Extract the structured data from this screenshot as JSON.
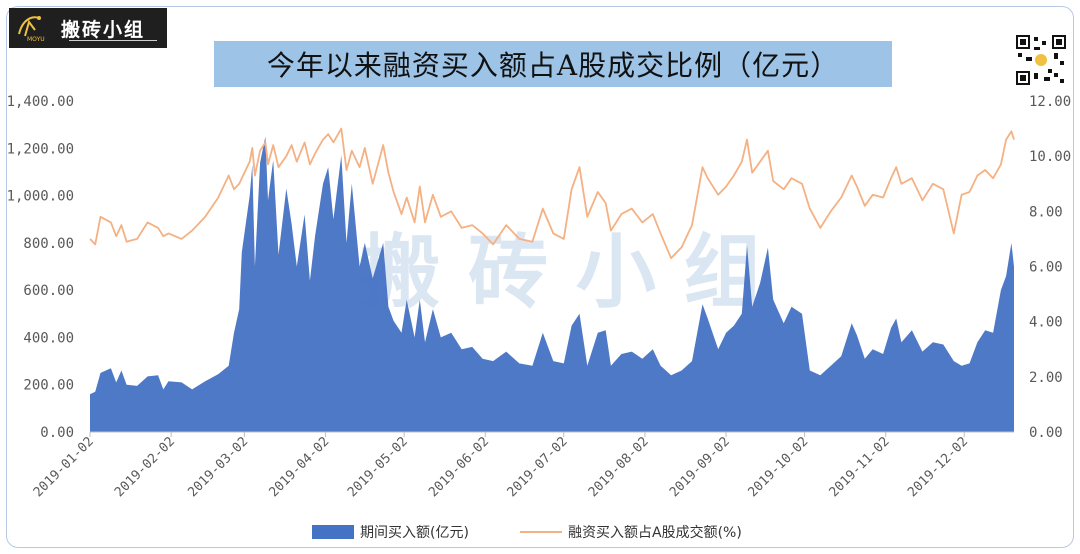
{
  "brand": {
    "name": "搬砖小组",
    "sub": "MOYU"
  },
  "watermark": "搬 砖 小 组",
  "chart_data": {
    "type": "area+line",
    "title": "今年以来融资买入额占A股成交比例（亿元）",
    "colors": {
      "area": "#4472c4",
      "line": "#f4b183",
      "title_bg": "#9dc3e6"
    },
    "x_labels": [
      "2019-01-02",
      "2019-02-02",
      "2019-03-02",
      "2019-04-02",
      "2019-05-02",
      "2019-06-02",
      "2019-07-02",
      "2019-08-02",
      "2019-09-02",
      "2019-10-02",
      "2019-11-02",
      "2019-12-02"
    ],
    "y_left": {
      "min": 0,
      "max": 1400,
      "ticks": [
        "0.00",
        "200.00",
        "400.00",
        "600.00",
        "800.00",
        "1,000.00",
        "1,200.00",
        "1,400.00"
      ]
    },
    "y_right": {
      "min": 0,
      "max": 12,
      "ticks": [
        "0.00",
        "2.00",
        "4.00",
        "6.00",
        "8.00",
        "10.00",
        "12.00"
      ]
    },
    "series": [
      {
        "name": "期间买入额(亿元)",
        "axis": "left",
        "points": [
          [
            "2019-01-02",
            160
          ],
          [
            "2019-01-04",
            170
          ],
          [
            "2019-01-06",
            250
          ],
          [
            "2019-01-10",
            270
          ],
          [
            "2019-01-12",
            210
          ],
          [
            "2019-01-14",
            260
          ],
          [
            "2019-01-16",
            200
          ],
          [
            "2019-01-20",
            195
          ],
          [
            "2019-01-24",
            235
          ],
          [
            "2019-01-28",
            240
          ],
          [
            "2019-01-30",
            180
          ],
          [
            "2019-02-01",
            215
          ],
          [
            "2019-02-06",
            210
          ],
          [
            "2019-02-10",
            180
          ],
          [
            "2019-02-15",
            215
          ],
          [
            "2019-02-20",
            245
          ],
          [
            "2019-02-24",
            280
          ],
          [
            "2019-02-26",
            420
          ],
          [
            "2019-02-28",
            520
          ],
          [
            "2019-03-01",
            760
          ],
          [
            "2019-03-04",
            1000
          ],
          [
            "2019-03-05",
            1130
          ],
          [
            "2019-03-06",
            700
          ],
          [
            "2019-03-08",
            1140
          ],
          [
            "2019-03-10",
            1250
          ],
          [
            "2019-03-11",
            980
          ],
          [
            "2019-03-13",
            1150
          ],
          [
            "2019-03-15",
            750
          ],
          [
            "2019-03-18",
            1030
          ],
          [
            "2019-03-20",
            880
          ],
          [
            "2019-03-22",
            700
          ],
          [
            "2019-03-25",
            920
          ],
          [
            "2019-03-27",
            640
          ],
          [
            "2019-03-29",
            830
          ],
          [
            "2019-04-01",
            1050
          ],
          [
            "2019-04-03",
            1120
          ],
          [
            "2019-04-05",
            900
          ],
          [
            "2019-04-08",
            1170
          ],
          [
            "2019-04-10",
            800
          ],
          [
            "2019-04-12",
            1050
          ],
          [
            "2019-04-15",
            700
          ],
          [
            "2019-04-17",
            800
          ],
          [
            "2019-04-20",
            650
          ],
          [
            "2019-04-24",
            800
          ],
          [
            "2019-04-26",
            530
          ],
          [
            "2019-04-28",
            470
          ],
          [
            "2019-05-01",
            420
          ],
          [
            "2019-05-03",
            560
          ],
          [
            "2019-05-06",
            400
          ],
          [
            "2019-05-08",
            560
          ],
          [
            "2019-05-10",
            380
          ],
          [
            "2019-05-13",
            520
          ],
          [
            "2019-05-16",
            400
          ],
          [
            "2019-05-20",
            420
          ],
          [
            "2019-05-24",
            350
          ],
          [
            "2019-05-28",
            360
          ],
          [
            "2019-06-01",
            310
          ],
          [
            "2019-06-05",
            300
          ],
          [
            "2019-06-10",
            340
          ],
          [
            "2019-06-15",
            290
          ],
          [
            "2019-06-20",
            280
          ],
          [
            "2019-06-24",
            420
          ],
          [
            "2019-06-28",
            300
          ],
          [
            "2019-07-02",
            290
          ],
          [
            "2019-07-05",
            450
          ],
          [
            "2019-07-08",
            500
          ],
          [
            "2019-07-11",
            280
          ],
          [
            "2019-07-15",
            420
          ],
          [
            "2019-07-18",
            430
          ],
          [
            "2019-07-20",
            280
          ],
          [
            "2019-07-24",
            330
          ],
          [
            "2019-07-28",
            340
          ],
          [
            "2019-08-01",
            310
          ],
          [
            "2019-08-05",
            350
          ],
          [
            "2019-08-08",
            280
          ],
          [
            "2019-08-12",
            240
          ],
          [
            "2019-08-16",
            260
          ],
          [
            "2019-08-20",
            300
          ],
          [
            "2019-08-24",
            540
          ],
          [
            "2019-08-26",
            480
          ],
          [
            "2019-08-30",
            350
          ],
          [
            "2019-09-02",
            420
          ],
          [
            "2019-09-05",
            450
          ],
          [
            "2019-09-08",
            500
          ],
          [
            "2019-09-10",
            790
          ],
          [
            "2019-09-12",
            530
          ],
          [
            "2019-09-15",
            630
          ],
          [
            "2019-09-18",
            780
          ],
          [
            "2019-09-20",
            560
          ],
          [
            "2019-09-24",
            460
          ],
          [
            "2019-09-27",
            530
          ],
          [
            "2019-10-01",
            500
          ],
          [
            "2019-10-04",
            260
          ],
          [
            "2019-10-08",
            240
          ],
          [
            "2019-10-12",
            280
          ],
          [
            "2019-10-16",
            320
          ],
          [
            "2019-10-20",
            460
          ],
          [
            "2019-10-22",
            410
          ],
          [
            "2019-10-25",
            310
          ],
          [
            "2019-10-28",
            350
          ],
          [
            "2019-11-01",
            330
          ],
          [
            "2019-11-04",
            440
          ],
          [
            "2019-11-06",
            480
          ],
          [
            "2019-11-08",
            380
          ],
          [
            "2019-11-12",
            430
          ],
          [
            "2019-11-16",
            340
          ],
          [
            "2019-11-20",
            380
          ],
          [
            "2019-11-24",
            370
          ],
          [
            "2019-11-28",
            300
          ],
          [
            "2019-12-01",
            280
          ],
          [
            "2019-12-04",
            290
          ],
          [
            "2019-12-07",
            380
          ],
          [
            "2019-12-10",
            430
          ],
          [
            "2019-12-13",
            420
          ],
          [
            "2019-12-16",
            600
          ],
          [
            "2019-12-18",
            660
          ],
          [
            "2019-12-20",
            800
          ],
          [
            "2019-12-21",
            700
          ]
        ]
      },
      {
        "name": "融资买入额占A股成交额(%)",
        "axis": "right",
        "points": [
          [
            "2019-01-02",
            7.0
          ],
          [
            "2019-01-04",
            6.8
          ],
          [
            "2019-01-06",
            7.8
          ],
          [
            "2019-01-10",
            7.6
          ],
          [
            "2019-01-12",
            7.1
          ],
          [
            "2019-01-14",
            7.5
          ],
          [
            "2019-01-16",
            6.9
          ],
          [
            "2019-01-20",
            7.0
          ],
          [
            "2019-01-24",
            7.6
          ],
          [
            "2019-01-28",
            7.4
          ],
          [
            "2019-01-30",
            7.1
          ],
          [
            "2019-02-01",
            7.2
          ],
          [
            "2019-02-06",
            7.0
          ],
          [
            "2019-02-10",
            7.3
          ],
          [
            "2019-02-15",
            7.8
          ],
          [
            "2019-02-20",
            8.5
          ],
          [
            "2019-02-24",
            9.3
          ],
          [
            "2019-02-26",
            8.8
          ],
          [
            "2019-02-28",
            9.0
          ],
          [
            "2019-03-01",
            9.2
          ],
          [
            "2019-03-04",
            9.8
          ],
          [
            "2019-03-05",
            10.3
          ],
          [
            "2019-03-06",
            9.3
          ],
          [
            "2019-03-08",
            10.2
          ],
          [
            "2019-03-10",
            10.5
          ],
          [
            "2019-03-11",
            9.7
          ],
          [
            "2019-03-13",
            10.4
          ],
          [
            "2019-03-15",
            9.6
          ],
          [
            "2019-03-18",
            10.0
          ],
          [
            "2019-03-20",
            10.4
          ],
          [
            "2019-03-22",
            9.8
          ],
          [
            "2019-03-25",
            10.5
          ],
          [
            "2019-03-27",
            9.7
          ],
          [
            "2019-03-29",
            10.1
          ],
          [
            "2019-04-01",
            10.6
          ],
          [
            "2019-04-03",
            10.8
          ],
          [
            "2019-04-05",
            10.5
          ],
          [
            "2019-04-08",
            11.0
          ],
          [
            "2019-04-10",
            9.5
          ],
          [
            "2019-04-12",
            10.2
          ],
          [
            "2019-04-15",
            9.6
          ],
          [
            "2019-04-17",
            10.3
          ],
          [
            "2019-04-20",
            9.0
          ],
          [
            "2019-04-24",
            10.4
          ],
          [
            "2019-04-26",
            9.4
          ],
          [
            "2019-04-28",
            8.7
          ],
          [
            "2019-05-01",
            7.9
          ],
          [
            "2019-05-03",
            8.5
          ],
          [
            "2019-05-06",
            7.6
          ],
          [
            "2019-05-08",
            8.9
          ],
          [
            "2019-05-10",
            7.6
          ],
          [
            "2019-05-13",
            8.6
          ],
          [
            "2019-05-16",
            7.8
          ],
          [
            "2019-05-20",
            8.0
          ],
          [
            "2019-05-24",
            7.4
          ],
          [
            "2019-05-28",
            7.5
          ],
          [
            "2019-06-01",
            7.2
          ],
          [
            "2019-06-05",
            6.8
          ],
          [
            "2019-06-10",
            7.5
          ],
          [
            "2019-06-15",
            7.0
          ],
          [
            "2019-06-20",
            6.9
          ],
          [
            "2019-06-24",
            8.1
          ],
          [
            "2019-06-28",
            7.2
          ],
          [
            "2019-07-02",
            7.0
          ],
          [
            "2019-07-05",
            8.8
          ],
          [
            "2019-07-08",
            9.6
          ],
          [
            "2019-07-11",
            7.8
          ],
          [
            "2019-07-15",
            8.7
          ],
          [
            "2019-07-18",
            8.3
          ],
          [
            "2019-07-20",
            7.3
          ],
          [
            "2019-07-24",
            7.9
          ],
          [
            "2019-07-28",
            8.1
          ],
          [
            "2019-08-01",
            7.6
          ],
          [
            "2019-08-05",
            7.9
          ],
          [
            "2019-08-08",
            7.2
          ],
          [
            "2019-08-12",
            6.3
          ],
          [
            "2019-08-16",
            6.7
          ],
          [
            "2019-08-20",
            7.5
          ],
          [
            "2019-08-24",
            9.6
          ],
          [
            "2019-08-26",
            9.2
          ],
          [
            "2019-08-30",
            8.6
          ],
          [
            "2019-09-02",
            8.9
          ],
          [
            "2019-09-05",
            9.3
          ],
          [
            "2019-09-08",
            9.8
          ],
          [
            "2019-09-10",
            10.6
          ],
          [
            "2019-09-12",
            9.4
          ],
          [
            "2019-09-15",
            9.8
          ],
          [
            "2019-09-18",
            10.2
          ],
          [
            "2019-09-20",
            9.1
          ],
          [
            "2019-09-24",
            8.8
          ],
          [
            "2019-09-27",
            9.2
          ],
          [
            "2019-10-01",
            9.0
          ],
          [
            "2019-10-04",
            8.1
          ],
          [
            "2019-10-08",
            7.4
          ],
          [
            "2019-10-12",
            8.0
          ],
          [
            "2019-10-16",
            8.5
          ],
          [
            "2019-10-20",
            9.3
          ],
          [
            "2019-10-22",
            8.9
          ],
          [
            "2019-10-25",
            8.2
          ],
          [
            "2019-10-28",
            8.6
          ],
          [
            "2019-11-01",
            8.5
          ],
          [
            "2019-11-04",
            9.2
          ],
          [
            "2019-11-06",
            9.6
          ],
          [
            "2019-11-08",
            9.0
          ],
          [
            "2019-11-12",
            9.2
          ],
          [
            "2019-11-16",
            8.4
          ],
          [
            "2019-11-20",
            9.0
          ],
          [
            "2019-11-24",
            8.8
          ],
          [
            "2019-11-28",
            7.2
          ],
          [
            "2019-12-01",
            8.6
          ],
          [
            "2019-12-04",
            8.7
          ],
          [
            "2019-12-07",
            9.3
          ],
          [
            "2019-12-10",
            9.5
          ],
          [
            "2019-12-13",
            9.2
          ],
          [
            "2019-12-16",
            9.7
          ],
          [
            "2019-12-18",
            10.6
          ],
          [
            "2019-12-20",
            10.9
          ],
          [
            "2019-12-21",
            10.6
          ]
        ]
      }
    ],
    "legend_position": "bottom",
    "grid": false
  }
}
